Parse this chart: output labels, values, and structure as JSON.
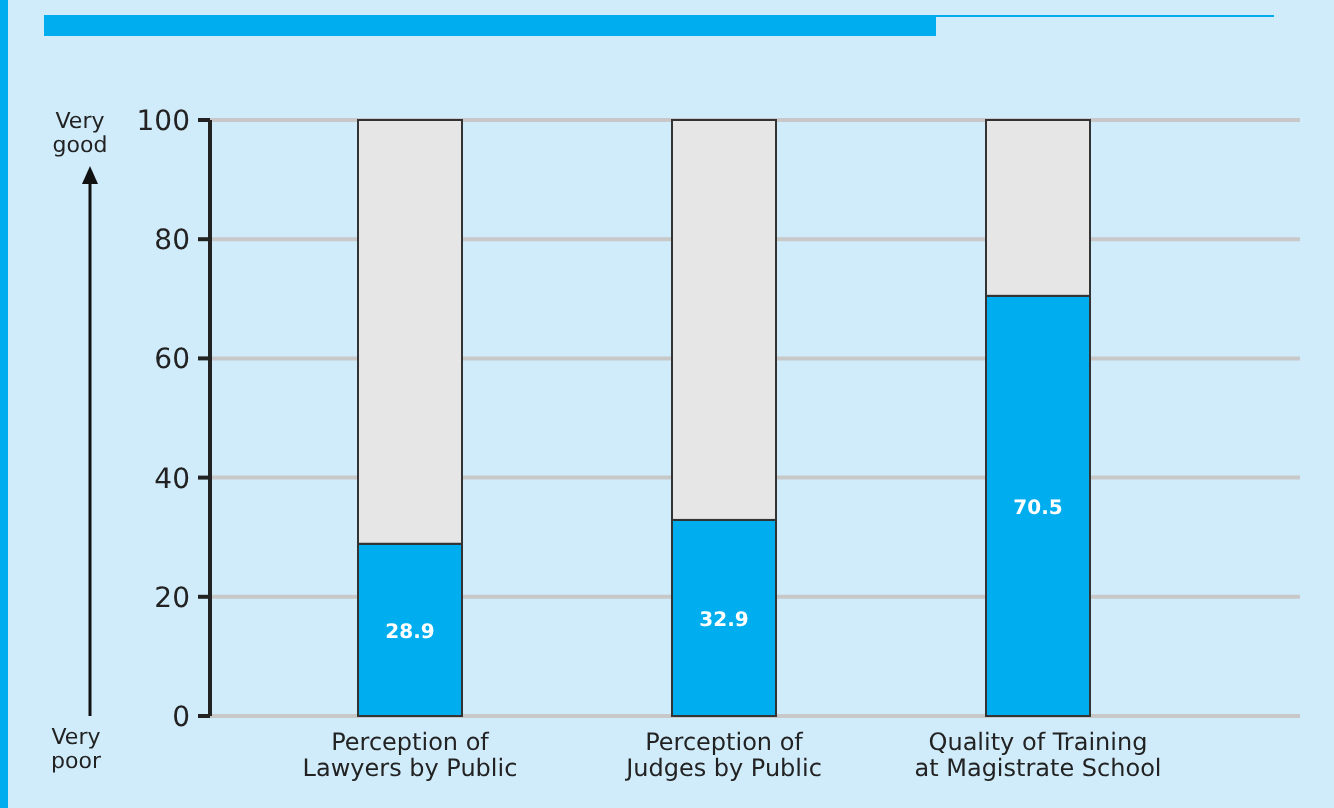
{
  "chart_data": {
    "type": "bar",
    "stacked": true,
    "categories": [
      "Perception of\nLawyers by Public",
      "Perception of\nJudges by Public",
      "Quality of Training\nat Magistrate School"
    ],
    "series": [
      {
        "color": "#00aeef",
        "values": [
          28.9,
          32.9,
          70.5
        ],
        "value_labels": [
          "28.9",
          "32.9",
          "70.5"
        ]
      },
      {
        "color": "#e6e6e6",
        "values": [
          71.1,
          67.1,
          29.5
        ]
      }
    ],
    "ylim": [
      0,
      100
    ],
    "yticks": [
      0,
      20,
      40,
      60,
      80,
      100
    ],
    "grid": "y",
    "annotations": [
      "Very\ngood",
      "Very\npoor"
    ]
  }
}
